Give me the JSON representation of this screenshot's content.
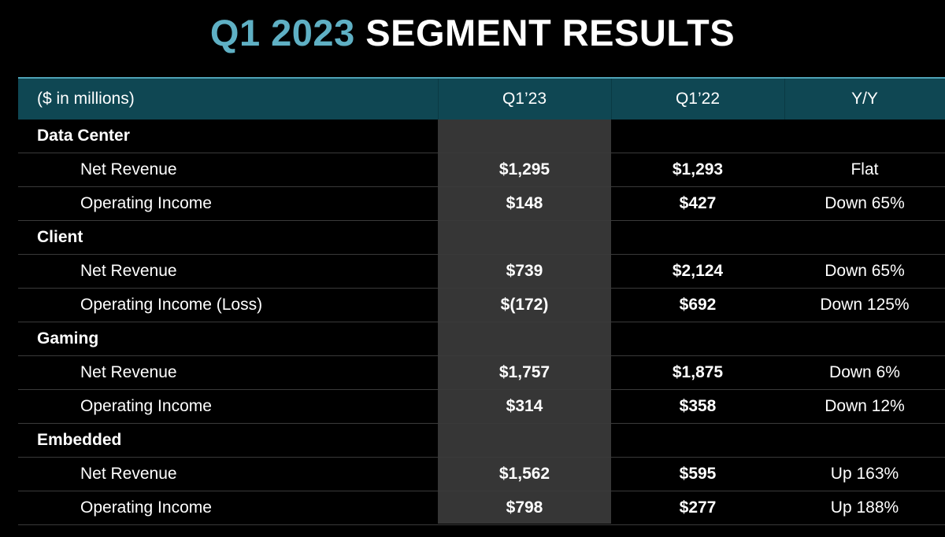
{
  "title": {
    "accent": "Q1 2023",
    "rest": " SEGMENT RESULTS"
  },
  "colors": {
    "accent": "#5fb0c4",
    "header_bg": "#0f4753",
    "highlight_column": "#363636",
    "background": "#000000"
  },
  "table": {
    "headers": [
      "($ in millions)",
      "Q1’23",
      "Q1’22",
      "Y/Y"
    ],
    "rows": [
      {
        "label": "Data Center",
        "section": true,
        "q123": "",
        "q122": "",
        "yy": ""
      },
      {
        "label": "Net Revenue",
        "section": false,
        "q123": "$1,295",
        "q122": "$1,293",
        "yy": "Flat"
      },
      {
        "label": "Operating Income",
        "section": false,
        "q123": "$148",
        "q122": "$427",
        "yy": "Down 65%"
      },
      {
        "label": "Client",
        "section": true,
        "q123": "",
        "q122": "",
        "yy": ""
      },
      {
        "label": "Net Revenue",
        "section": false,
        "q123": "$739",
        "q122": "$2,124",
        "yy": "Down 65%"
      },
      {
        "label": "Operating Income (Loss)",
        "section": false,
        "q123": "$(172)",
        "q122": "$692",
        "yy": "Down 125%"
      },
      {
        "label": "Gaming",
        "section": true,
        "q123": "",
        "q122": "",
        "yy": ""
      },
      {
        "label": "Net Revenue",
        "section": false,
        "q123": "$1,757",
        "q122": "$1,875",
        "yy": "Down 6%"
      },
      {
        "label": "Operating Income",
        "section": false,
        "q123": "$314",
        "q122": "$358",
        "yy": "Down 12%"
      },
      {
        "label": "Embedded",
        "section": true,
        "q123": "",
        "q122": "",
        "yy": ""
      },
      {
        "label": "Net Revenue",
        "section": false,
        "q123": "$1,562",
        "q122": "$595",
        "yy": "Up 163%"
      },
      {
        "label": "Operating Income",
        "section": false,
        "q123": "$798",
        "q122": "$277",
        "yy": "Up 188%"
      }
    ]
  }
}
